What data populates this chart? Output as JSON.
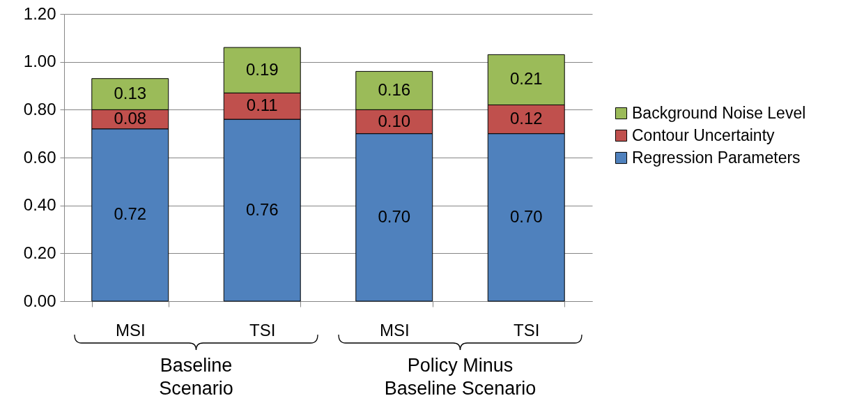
{
  "chart_data": {
    "type": "bar",
    "stacked": true,
    "categories": [
      "MSI",
      "TSI",
      "MSI",
      "TSI"
    ],
    "series": [
      {
        "name": "Regression Parameters",
        "color": "#4f81bd",
        "values": [
          0.72,
          0.76,
          0.7,
          0.7
        ],
        "value_labels": [
          "0.72",
          "0.76",
          "0.70",
          "0.70"
        ]
      },
      {
        "name": "Contour Uncertainty",
        "color": "#c0504d",
        "values": [
          0.08,
          0.11,
          0.1,
          0.12
        ],
        "value_labels": [
          "0.08",
          "0.11",
          "0.10",
          "0.12"
        ]
      },
      {
        "name": "Background Noise Level",
        "color": "#9bbb59",
        "values": [
          0.13,
          0.19,
          0.16,
          0.21
        ],
        "value_labels": [
          "0.13",
          "0.19",
          "0.16",
          "0.21"
        ]
      }
    ],
    "ylim": [
      0,
      1.2
    ],
    "yticks": [
      {
        "value": 0,
        "label": "0.00"
      },
      {
        "value": 0.2,
        "label": "0.20"
      },
      {
        "value": 0.4,
        "label": "0.40"
      },
      {
        "value": 0.6,
        "label": "0.60"
      },
      {
        "value": 0.8,
        "label": "0.80"
      },
      {
        "value": 1,
        "label": "1.00"
      },
      {
        "value": 1.2,
        "label": "1.20"
      }
    ],
    "grid": "y",
    "legend": "right",
    "annotations": [
      "Baseline\nScenario",
      "Policy Minus\nBaseline Scenario"
    ]
  }
}
